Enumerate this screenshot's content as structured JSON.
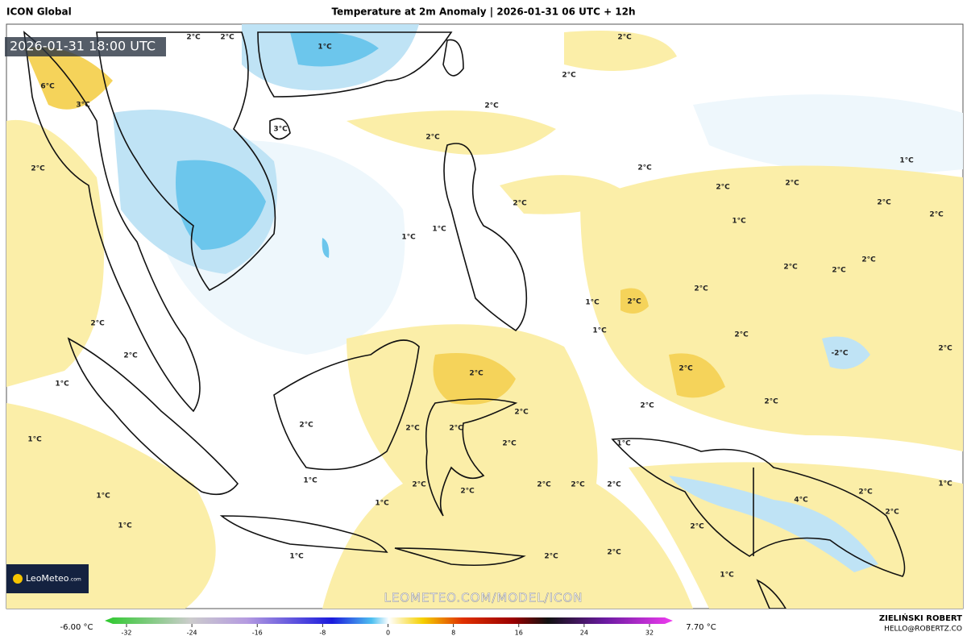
{
  "header": {
    "model": "ICON Global",
    "title": "Temperature at 2m Anomaly | 2026-01-31 06 UTC + 12h"
  },
  "map": {
    "valid_time": "2026-01-31 18:00 UTC",
    "labels": [
      "2°C",
      "2°C",
      "1°C",
      "2°C",
      "2°C",
      "2°C",
      "6°C",
      "3°C",
      "3°C",
      "2°C",
      "2°C",
      "2°C",
      "1°C",
      "2°C",
      "2°C",
      "2°C",
      "1°C",
      "2°C",
      "2°C",
      "1°C",
      "1°C",
      "2°C",
      "2°C",
      "2°C",
      "2°C",
      "1°C",
      "2°C",
      "1°C",
      "2°C",
      "2°C",
      "-2°C",
      "2°C",
      "2°C",
      "2°C",
      "2°C",
      "1°C",
      "2°C",
      "2°C",
      "2°C",
      "2°C",
      "2°C",
      "2°C",
      "1°C",
      "2°C",
      "1°C",
      "1°C",
      "2°C",
      "2°C",
      "2°C",
      "2°C",
      "2°C",
      "2°C",
      "2°C",
      "1°C",
      "1°C",
      "1°C",
      "2°C",
      "1°C",
      "1°C",
      "2°C",
      "2°C",
      "1°C",
      "4°C"
    ],
    "watermark": "LEOMETEO.COM/MODEL/ICON",
    "logo": {
      "name": "LeoMeteo",
      "suffix": ".com"
    }
  },
  "colorbar": {
    "min_label": "-6.00 °C",
    "max_label": "7.70 °C",
    "ticks": [
      -32,
      -24,
      -16,
      -8,
      0,
      8,
      16,
      24,
      32
    ]
  },
  "footer": {
    "author": "ZIELIŃSKI ROBERT",
    "contact": "HELLO@ROBERTZ.CO"
  }
}
